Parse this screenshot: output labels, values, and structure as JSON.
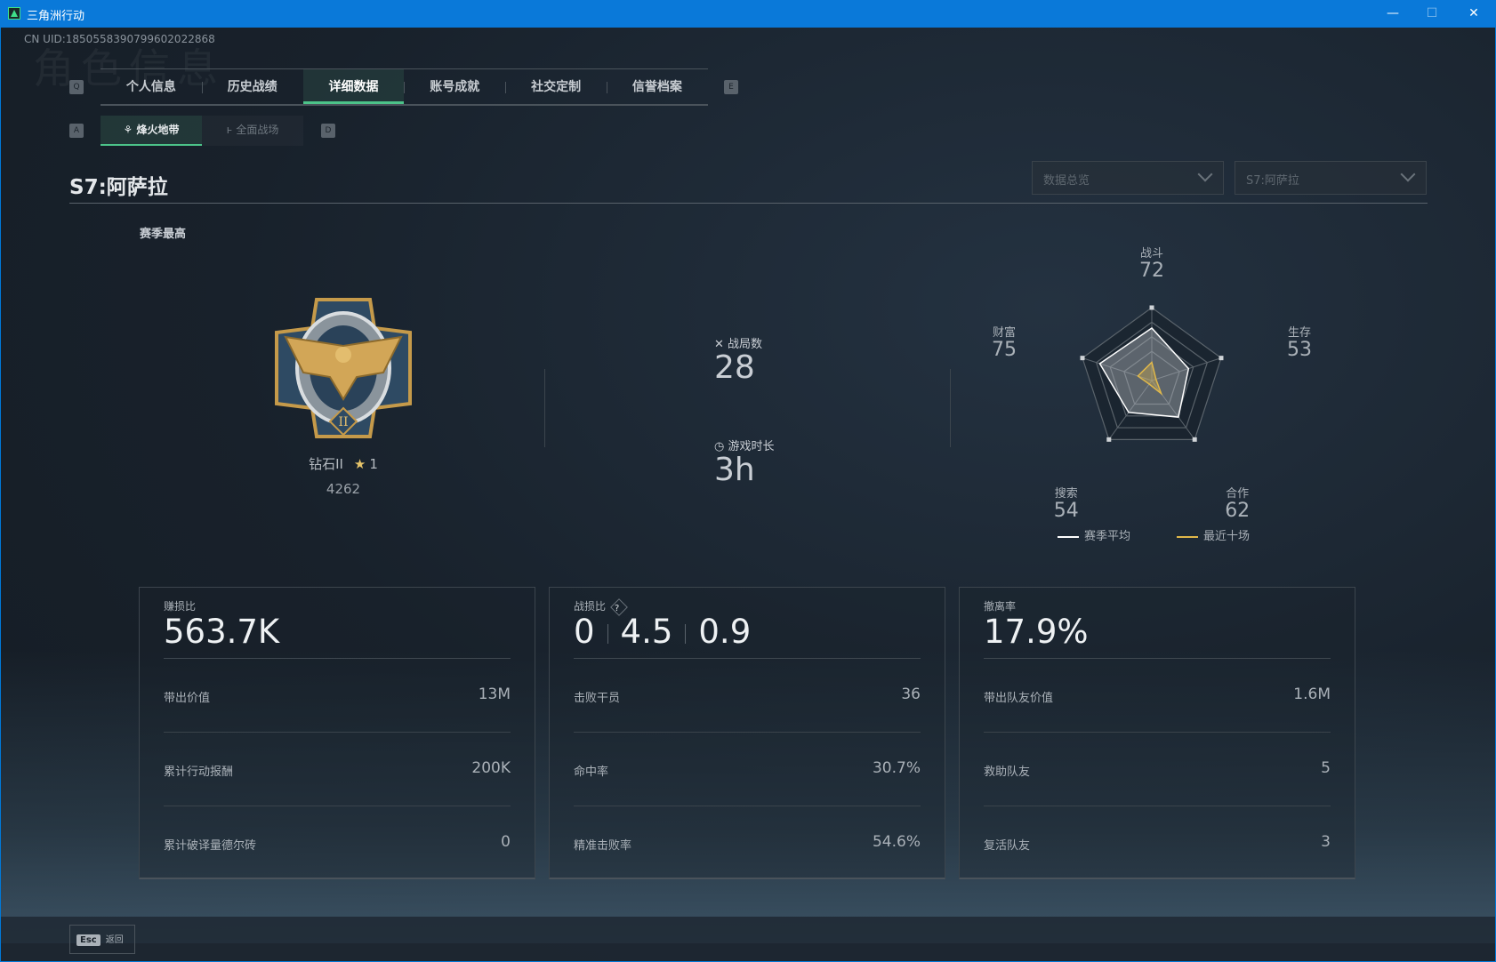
{
  "window": {
    "title": "三角洲行动",
    "minimize": "—",
    "maximize": "☐",
    "close": "✕"
  },
  "uid": "CN UID:1850558390799602022868",
  "ghost_title": "角色信息",
  "tabs": {
    "prev_key": "Q",
    "next_key": "E",
    "items": [
      {
        "label": "个人信息"
      },
      {
        "label": "历史战绩"
      },
      {
        "label": "详细数据",
        "active": true
      },
      {
        "label": "账号成就"
      },
      {
        "label": "社交定制"
      },
      {
        "label": "信誉档案"
      }
    ]
  },
  "subtabs": {
    "prev_key": "A",
    "next_key": "D",
    "items": [
      {
        "label": "烽火地带",
        "icon": "flame-zone-icon",
        "active": true
      },
      {
        "label": "全面战场",
        "icon": "battlefield-icon"
      }
    ]
  },
  "season_title": "S7:阿萨拉",
  "dropdowns": {
    "view": "数据总览",
    "season": "S7:阿萨拉"
  },
  "best": {
    "heading": "赛季最高",
    "rank": "钻石II",
    "stars": "1",
    "score": "4262"
  },
  "stats": {
    "matches_label": "战局数",
    "matches": "28",
    "time_label": "游戏时长",
    "time": "3h"
  },
  "radar": {
    "axes": [
      {
        "label": "战斗",
        "value": "72"
      },
      {
        "label": "生存",
        "value": "53"
      },
      {
        "label": "合作",
        "value": "62"
      },
      {
        "label": "搜索",
        "value": "54"
      },
      {
        "label": "财富",
        "value": "75"
      }
    ],
    "season_avg": [
      72,
      53,
      62,
      54,
      75
    ],
    "recent_ten": [
      25,
      6,
      22,
      6,
      20
    ],
    "max": 100,
    "legend": {
      "season_avg": "赛季平均",
      "recent_ten": "最近十场"
    },
    "colors": {
      "season_avg": "#ffffff",
      "recent_ten": "#e0b84a"
    }
  },
  "cards": [
    {
      "label": "赚损比",
      "value": "563.7K",
      "rows": [
        {
          "k": "带出价值",
          "v": "13M"
        },
        {
          "k": "累计行动报酬",
          "v": "200K"
        },
        {
          "k": "累计破译量德尔砖",
          "v": "0"
        }
      ]
    },
    {
      "label": "战损比",
      "help": "?",
      "values": [
        "0",
        "4.5",
        "0.9"
      ],
      "rows": [
        {
          "k": "击败干员",
          "v": "36"
        },
        {
          "k": "命中率",
          "v": "30.7%"
        },
        {
          "k": "精准击败率",
          "v": "54.6%"
        }
      ]
    },
    {
      "label": "撤离率",
      "value": "17.9%",
      "rows": [
        {
          "k": "带出队友价值",
          "v": "1.6M"
        },
        {
          "k": "救助队友",
          "v": "5"
        },
        {
          "k": "复活队友",
          "v": "3"
        }
      ]
    }
  ],
  "footer": {
    "esc_key": "Esc",
    "back": "返回"
  }
}
